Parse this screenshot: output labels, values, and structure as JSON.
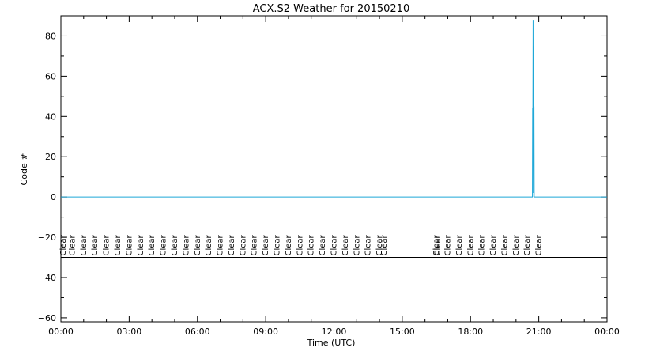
{
  "chart_data": {
    "type": "line",
    "title": "ACX.S2 Weather for 20150210",
    "xlabel": "Time (UTC)",
    "ylabel": "Code #",
    "xlim_hours": [
      0,
      24
    ],
    "ylim": [
      -62,
      90
    ],
    "x_tick_labels": [
      "00:00",
      "03:00",
      "06:00",
      "09:00",
      "12:00",
      "15:00",
      "18:00",
      "21:00",
      "00:00"
    ],
    "y_ticks": [
      -60,
      -40,
      -20,
      0,
      20,
      40,
      60,
      80
    ],
    "grid": false,
    "series_color": "#1fa8d8",
    "series": [
      {
        "x_hours": [
          0,
          20.72,
          20.73,
          20.74,
          20.75,
          20.76,
          20.77,
          20.78,
          20.79,
          20.8,
          20.81,
          24
        ],
        "values": [
          0,
          0,
          44,
          44,
          88,
          2,
          75,
          0,
          45,
          0,
          0,
          0
        ]
      }
    ],
    "reference_line_value": -30,
    "annotation_label": "Clear",
    "annotation_x_hours": [
      0.1,
      0.5,
      1.0,
      1.5,
      2.0,
      2.5,
      3.0,
      3.5,
      4.0,
      4.5,
      5.0,
      5.5,
      6.0,
      6.5,
      7.0,
      7.5,
      8.0,
      8.5,
      9.0,
      9.5,
      10.0,
      10.5,
      11.0,
      11.5,
      12.0,
      12.5,
      13.0,
      13.5,
      14.0,
      14.2,
      16.5,
      16.55,
      17.0,
      17.5,
      18.0,
      18.5,
      19.0,
      19.5,
      20.0,
      20.5,
      21.0
    ]
  }
}
